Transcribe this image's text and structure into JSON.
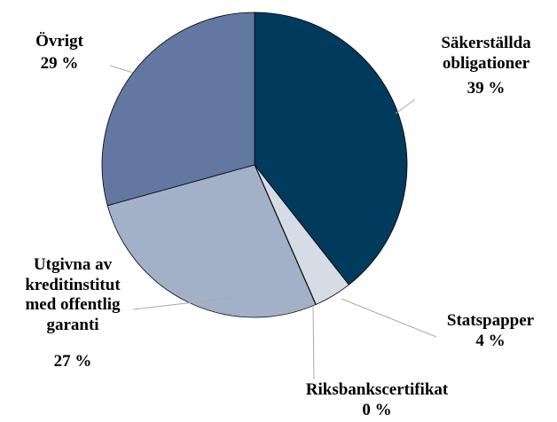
{
  "chart_data": {
    "type": "pie",
    "categories": [
      "Säkerställda\nobligationer",
      "Statspapper",
      "Riksbankscertifikat",
      "Utgivna av\nkreditinstitut\nmed offentlig\ngaranti",
      "Övrigt"
    ],
    "values": [
      39,
      4,
      0,
      27,
      29
    ],
    "value_labels": [
      "39 %",
      "4 %",
      "0 %",
      "27 %",
      "29 %"
    ],
    "colors": [
      "#003a5d",
      "#d6dce6",
      "#000000",
      "#a2b1c7",
      "#6378a0"
    ]
  }
}
